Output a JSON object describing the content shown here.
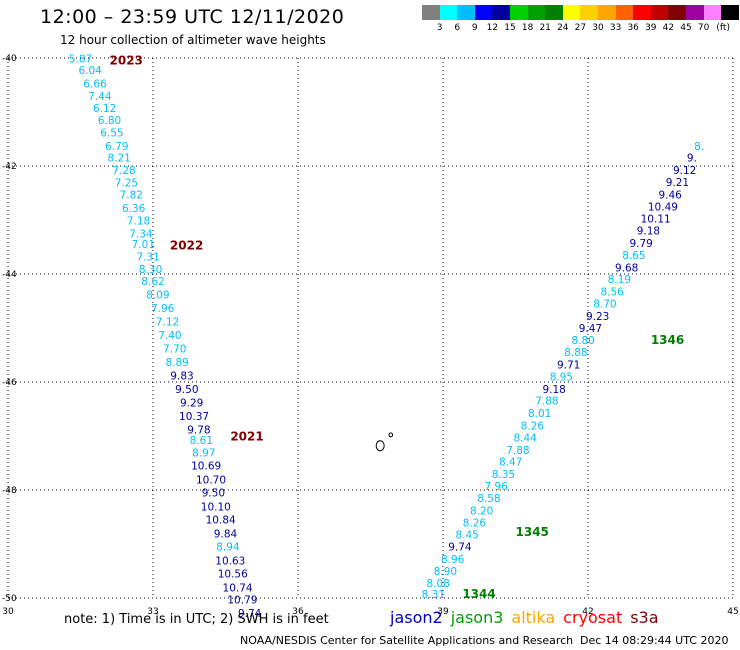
{
  "header": {
    "title": "12:00 – 23:59 UTC 12/11/2020",
    "subtitle": "12 hour collection of altimeter wave heights"
  },
  "colorbar": {
    "colors": [
      "#808080",
      "#00ffff",
      "#00bfff",
      "#0000ff",
      "#0000a0",
      "#00d000",
      "#00a000",
      "#008000",
      "#ffff00",
      "#ffd000",
      "#ffa500",
      "#ff6000",
      "#ff0000",
      "#c00000",
      "#800000",
      "#a000a0",
      "#ff80ff",
      "#000000"
    ],
    "labels": [
      "3",
      "6",
      "9",
      "12",
      "15",
      "18",
      "21",
      "24",
      "27",
      "30",
      "33",
      "36",
      "39",
      "42",
      "45",
      "70",
      "(ft)"
    ]
  },
  "map": {
    "x_ticks": [
      "30",
      "33",
      "36",
      "39",
      "42",
      "45"
    ],
    "y_ticks": [
      "-40",
      "-42",
      "-44",
      "-46",
      "-48",
      "-50"
    ],
    "lon_range": [
      30,
      45
    ],
    "lat_range": [
      -40,
      -50
    ],
    "left_track": [
      {
        "lon": 31.5,
        "lat": -40.08,
        "v": "5.87",
        "c": "#00bfff"
      },
      {
        "lon": 31.7,
        "lat": -40.3,
        "v": "6.04",
        "c": "#00bfff"
      },
      {
        "lon": 31.8,
        "lat": -40.55,
        "v": "6.66",
        "c": "#00bfff"
      },
      {
        "lon": 31.9,
        "lat": -40.78,
        "v": "7.44",
        "c": "#00bfff"
      },
      {
        "lon": 32.0,
        "lat": -41.0,
        "v": "6.12",
        "c": "#00bfff"
      },
      {
        "lon": 32.1,
        "lat": -41.22,
        "v": "6.80",
        "c": "#00bfff"
      },
      {
        "lon": 32.15,
        "lat": -41.45,
        "v": "6.55",
        "c": "#00bfff"
      },
      {
        "lon": 32.25,
        "lat": -41.7,
        "v": "6.79",
        "c": "#00bfff"
      },
      {
        "lon": 32.3,
        "lat": -41.92,
        "v": "8.21",
        "c": "#00bfff"
      },
      {
        "lon": 32.4,
        "lat": -42.15,
        "v": "7.28",
        "c": "#00bfff"
      },
      {
        "lon": 32.45,
        "lat": -42.38,
        "v": "7.25",
        "c": "#00bfff"
      },
      {
        "lon": 32.55,
        "lat": -42.6,
        "v": "7.82",
        "c": "#00bfff"
      },
      {
        "lon": 32.6,
        "lat": -42.85,
        "v": "6.36",
        "c": "#00bfff"
      },
      {
        "lon": 32.7,
        "lat": -43.08,
        "v": "7.18",
        "c": "#00bfff"
      },
      {
        "lon": 32.75,
        "lat": -43.32,
        "v": "7.34",
        "c": "#00bfff"
      },
      {
        "lon": 32.8,
        "lat": -43.52,
        "v": "7.01",
        "c": "#00bfff"
      },
      {
        "lon": 32.9,
        "lat": -43.75,
        "v": "7.31",
        "c": "#00bfff"
      },
      {
        "lon": 32.95,
        "lat": -43.98,
        "v": "8.30",
        "c": "#00bfff"
      },
      {
        "lon": 33.0,
        "lat": -44.2,
        "v": "8.62",
        "c": "#00bfff"
      },
      {
        "lon": 33.1,
        "lat": -44.45,
        "v": "8.09",
        "c": "#00bfff"
      },
      {
        "lon": 33.2,
        "lat": -44.7,
        "v": "7.96",
        "c": "#00bfff"
      },
      {
        "lon": 33.3,
        "lat": -44.95,
        "v": "7.12",
        "c": "#00bfff"
      },
      {
        "lon": 33.35,
        "lat": -45.2,
        "v": "7.40",
        "c": "#00bfff"
      },
      {
        "lon": 33.45,
        "lat": -45.45,
        "v": "7.70",
        "c": "#00bfff"
      },
      {
        "lon": 33.5,
        "lat": -45.7,
        "v": "8.89",
        "c": "#00bfff"
      },
      {
        "lon": 33.6,
        "lat": -45.95,
        "v": "9.83",
        "c": "#0000a0"
      },
      {
        "lon": 33.7,
        "lat": -46.2,
        "v": "9.50",
        "c": "#0000a0"
      },
      {
        "lon": 33.8,
        "lat": -46.45,
        "v": "9.29",
        "c": "#0000a0"
      },
      {
        "lon": 33.85,
        "lat": -46.7,
        "v": "10.37",
        "c": "#0000a0"
      },
      {
        "lon": 33.95,
        "lat": -46.95,
        "v": "9.78",
        "c": "#0000a0"
      },
      {
        "lon": 34.0,
        "lat": -47.15,
        "v": "8.61",
        "c": "#00bfff"
      },
      {
        "lon": 34.05,
        "lat": -47.38,
        "v": "8.97",
        "c": "#00bfff"
      },
      {
        "lon": 34.1,
        "lat": -47.62,
        "v": "10.69",
        "c": "#0000a0"
      },
      {
        "lon": 34.2,
        "lat": -47.88,
        "v": "10.70",
        "c": "#0000a0"
      },
      {
        "lon": 34.25,
        "lat": -48.12,
        "v": "9.50",
        "c": "#0000a0"
      },
      {
        "lon": 34.3,
        "lat": -48.38,
        "v": "10.10",
        "c": "#0000a0"
      },
      {
        "lon": 34.4,
        "lat": -48.62,
        "v": "10.84",
        "c": "#0000a0"
      },
      {
        "lon": 34.5,
        "lat": -48.88,
        "v": "9.84",
        "c": "#0000a0"
      },
      {
        "lon": 34.55,
        "lat": -49.12,
        "v": "8.94",
        "c": "#00bfff"
      },
      {
        "lon": 34.6,
        "lat": -49.38,
        "v": "10.63",
        "c": "#0000a0"
      },
      {
        "lon": 34.65,
        "lat": -49.62,
        "v": "10.56",
        "c": "#0000a0"
      },
      {
        "lon": 34.75,
        "lat": -49.88,
        "v": "10.74",
        "c": "#0000a0"
      },
      {
        "lon": 34.85,
        "lat": -50.1,
        "v": "10.79",
        "c": "#0000a0"
      },
      {
        "lon": 35.0,
        "lat": -50.35,
        "v": "9.74",
        "c": "#0000a0"
      }
    ],
    "right_track": [
      {
        "lon": 38.8,
        "lat": -50.0,
        "v": "8.31",
        "c": "#00bfff"
      },
      {
        "lon": 38.9,
        "lat": -49.8,
        "v": "8.08",
        "c": "#00bfff"
      },
      {
        "lon": 39.05,
        "lat": -49.57,
        "v": "8.90",
        "c": "#00bfff"
      },
      {
        "lon": 39.2,
        "lat": -49.35,
        "v": "8.96",
        "c": "#00bfff"
      },
      {
        "lon": 39.35,
        "lat": -49.12,
        "v": "9.74",
        "c": "#0000a0"
      },
      {
        "lon": 39.5,
        "lat": -48.9,
        "v": "8.45",
        "c": "#00bfff"
      },
      {
        "lon": 39.65,
        "lat": -48.68,
        "v": "8.26",
        "c": "#00bfff"
      },
      {
        "lon": 39.8,
        "lat": -48.45,
        "v": "8.20",
        "c": "#00bfff"
      },
      {
        "lon": 39.95,
        "lat": -48.22,
        "v": "8.58",
        "c": "#00bfff"
      },
      {
        "lon": 40.1,
        "lat": -48.0,
        "v": "7.96",
        "c": "#00bfff"
      },
      {
        "lon": 40.25,
        "lat": -47.78,
        "v": "8.35",
        "c": "#00bfff"
      },
      {
        "lon": 40.4,
        "lat": -47.55,
        "v": "8.47",
        "c": "#00bfff"
      },
      {
        "lon": 40.55,
        "lat": -47.33,
        "v": "7.88",
        "c": "#00bfff"
      },
      {
        "lon": 40.7,
        "lat": -47.1,
        "v": "8.44",
        "c": "#00bfff"
      },
      {
        "lon": 40.85,
        "lat": -46.88,
        "v": "8.26",
        "c": "#00bfff"
      },
      {
        "lon": 41.0,
        "lat": -46.65,
        "v": "8.01",
        "c": "#00bfff"
      },
      {
        "lon": 41.15,
        "lat": -46.42,
        "v": "7.88",
        "c": "#00bfff"
      },
      {
        "lon": 41.3,
        "lat": -46.2,
        "v": "9.18",
        "c": "#0000a0"
      },
      {
        "lon": 41.45,
        "lat": -45.97,
        "v": "8.95",
        "c": "#00bfff"
      },
      {
        "lon": 41.6,
        "lat": -45.75,
        "v": "9.71",
        "c": "#0000a0"
      },
      {
        "lon": 41.75,
        "lat": -45.52,
        "v": "8.88",
        "c": "#00bfff"
      },
      {
        "lon": 41.9,
        "lat": -45.3,
        "v": "8.80",
        "c": "#00bfff"
      },
      {
        "lon": 42.05,
        "lat": -45.07,
        "v": "9.47",
        "c": "#0000a0"
      },
      {
        "lon": 42.2,
        "lat": -44.85,
        "v": "9.23",
        "c": "#0000a0"
      },
      {
        "lon": 42.35,
        "lat": -44.62,
        "v": "8.70",
        "c": "#00bfff"
      },
      {
        "lon": 42.5,
        "lat": -44.4,
        "v": "8.56",
        "c": "#00bfff"
      },
      {
        "lon": 42.65,
        "lat": -44.17,
        "v": "8.19",
        "c": "#00bfff"
      },
      {
        "lon": 42.8,
        "lat": -43.95,
        "v": "9.68",
        "c": "#0000a0"
      },
      {
        "lon": 42.95,
        "lat": -43.72,
        "v": "8.65",
        "c": "#00bfff"
      },
      {
        "lon": 43.1,
        "lat": -43.5,
        "v": "9.79",
        "c": "#0000a0"
      },
      {
        "lon": 43.25,
        "lat": -43.27,
        "v": "9.18",
        "c": "#0000a0"
      },
      {
        "lon": 43.4,
        "lat": -43.05,
        "v": "10.11",
        "c": "#0000a0"
      },
      {
        "lon": 43.55,
        "lat": -42.82,
        "v": "10.49",
        "c": "#0000a0"
      },
      {
        "lon": 43.7,
        "lat": -42.6,
        "v": "9.46",
        "c": "#0000a0"
      },
      {
        "lon": 43.85,
        "lat": -42.37,
        "v": "9.21",
        "c": "#0000a0"
      },
      {
        "lon": 44.0,
        "lat": -42.15,
        "v": "9.12",
        "c": "#0000a0"
      },
      {
        "lon": 44.15,
        "lat": -41.92,
        "v": "9.",
        "c": "#0000a0"
      },
      {
        "lon": 44.3,
        "lat": -41.7,
        "v": "8.",
        "c": "#00bfff"
      }
    ],
    "time_labels": [
      {
        "lon": 32.1,
        "lat": -40.12,
        "t": "2023",
        "c": "#800000"
      },
      {
        "lon": 33.35,
        "lat": -43.55,
        "t": "2022",
        "c": "#800000"
      },
      {
        "lon": 34.6,
        "lat": -47.08,
        "t": "2021",
        "c": "#800000"
      },
      {
        "lon": 40.5,
        "lat": -48.85,
        "t": "1345",
        "c": "#008000"
      },
      {
        "lon": 39.4,
        "lat": -50.0,
        "t": "1344",
        "c": "#008000"
      },
      {
        "lon": 43.3,
        "lat": -45.3,
        "t": "1346",
        "c": "#008000"
      }
    ]
  },
  "note": "note:  1) Time is in UTC;  2) SWH is in feet",
  "satellites": [
    {
      "name": "jason2",
      "color": "#0000c8"
    },
    {
      "name": "jason3",
      "color": "#00a000"
    },
    {
      "name": "altika",
      "color": "#ffa500"
    },
    {
      "name": "cryosat",
      "color": "#ff0000"
    },
    {
      "name": "s3a",
      "color": "#800000"
    }
  ],
  "footer": {
    "left": "NOAA/NESDIS Center for Satellite Applications and Research",
    "right": "Dec 14 08:29:44 UTC 2020"
  }
}
